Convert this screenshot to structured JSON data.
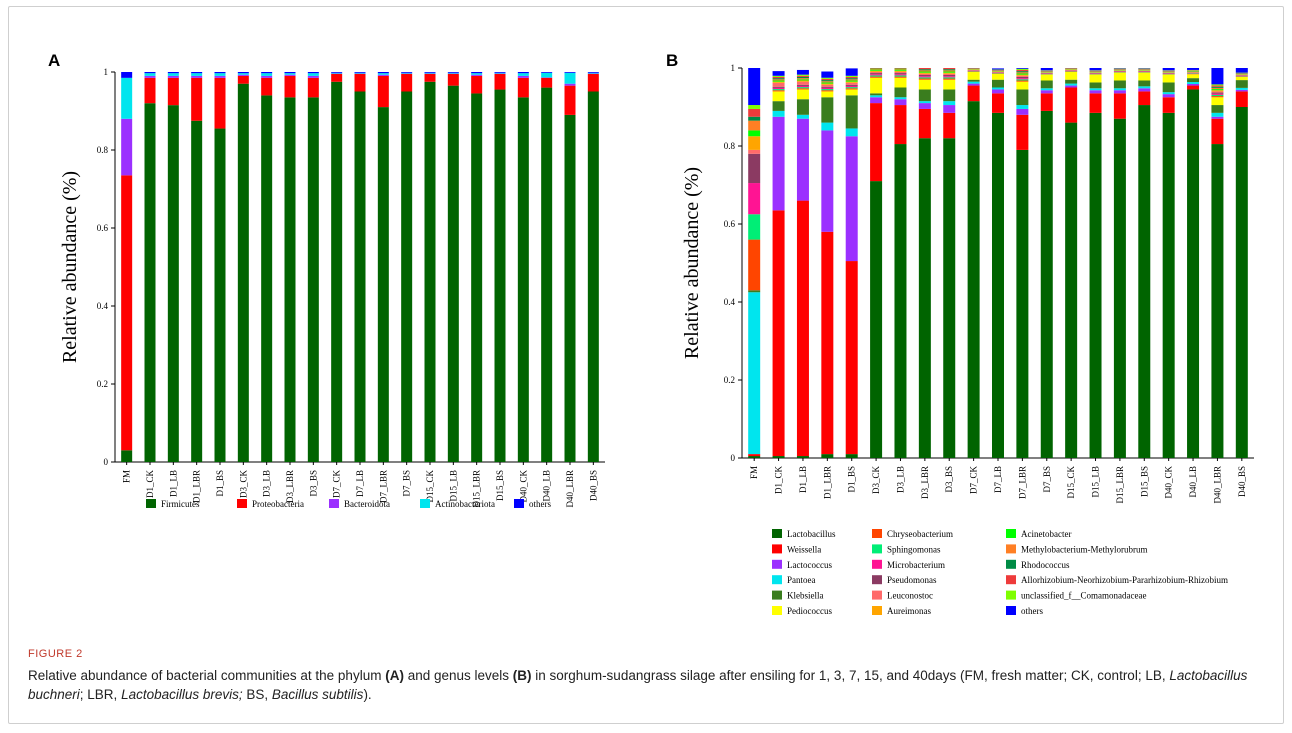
{
  "figure_label": "FIGURE 2",
  "caption": {
    "t1": "Relative abundance of bacterial communities at the phylum ",
    "a": "(A)",
    "t2": " and genus levels ",
    "b": "(B)",
    "t3": " in sorghum-sudangrass silage after ensiling for 1, 3, 7, 15, and 40days (FM, fresh matter; CK, control; LB, ",
    "lb": "Lactobacillus buchneri",
    "t4": "; LBR, ",
    "lbr": "Lactobacillus brevis;",
    "t5": " BS, ",
    "bs": "Bacillus subtilis",
    "t6": ")."
  },
  "chart_data": [
    {
      "panel": "A",
      "type": "bar",
      "stacked": true,
      "ylabel": "Relative abundance (%)",
      "ylim": [
        0,
        1
      ],
      "yticks": [
        "0",
        "0.2",
        "0.4",
        "0.6",
        "0.8",
        "1"
      ],
      "legend_position": "bottom",
      "categories": [
        "FM",
        "D1_CK",
        "D1_LB",
        "D1_LBR",
        "D1_BS",
        "D3_CK",
        "D3_LB",
        "D3_LBR",
        "D3_BS",
        "D7_CK",
        "D7_LB",
        "D7_LBR",
        "D7_BS",
        "D15_CK",
        "D15_LB",
        "D15_LBR",
        "D15_BS",
        "D40_CK",
        "D40_LB",
        "D40_LBR",
        "D40_BS"
      ],
      "series": [
        {
          "name": "Firmicutes",
          "color": "#006400",
          "values": [
            0.03,
            0.92,
            0.915,
            0.875,
            0.855,
            0.97,
            0.94,
            0.935,
            0.935,
            0.975,
            0.95,
            0.91,
            0.95,
            0.975,
            0.965,
            0.945,
            0.955,
            0.935,
            0.96,
            0.89,
            0.95
          ]
        },
        {
          "name": "Proteobacteria",
          "color": "#ff0000",
          "values": [
            0.705,
            0.065,
            0.07,
            0.11,
            0.13,
            0.02,
            0.045,
            0.055,
            0.05,
            0.02,
            0.045,
            0.08,
            0.045,
            0.02,
            0.03,
            0.045,
            0.04,
            0.05,
            0.025,
            0.075,
            0.045
          ]
        },
        {
          "name": "Bacteroidota",
          "color": "#9b30ff",
          "values": [
            0.145,
            0.005,
            0.005,
            0.005,
            0.005,
            0.003,
            0.005,
            0.003,
            0.005,
            0.001,
            0.001,
            0.003,
            0.001,
            0.001,
            0.001,
            0.003,
            0.001,
            0.005,
            0.001,
            0.005,
            0.001
          ]
        },
        {
          "name": "Actinobacteriota",
          "color": "#00e5ee",
          "values": [
            0.105,
            0.007,
            0.007,
            0.007,
            0.007,
            0.004,
            0.007,
            0.004,
            0.007,
            0.002,
            0.002,
            0.004,
            0.002,
            0.002,
            0.002,
            0.004,
            0.002,
            0.007,
            0.012,
            0.028,
            0.002
          ]
        },
        {
          "name": "others",
          "color": "#0000ff",
          "values": [
            0.015,
            0.003,
            0.003,
            0.003,
            0.003,
            0.003,
            0.003,
            0.003,
            0.003,
            0.002,
            0.002,
            0.003,
            0.002,
            0.002,
            0.002,
            0.003,
            0.002,
            0.003,
            0.002,
            0.002,
            0.002
          ]
        }
      ]
    },
    {
      "panel": "B",
      "type": "bar",
      "stacked": true,
      "ylabel": "Relative abundance (%)",
      "ylim": [
        0,
        1
      ],
      "yticks": [
        "0",
        "0.2",
        "0.4",
        "0.6",
        "0.8",
        "1"
      ],
      "legend_position": "bottom",
      "categories": [
        "FM",
        "D1_CK",
        "D1_LB",
        "D1_LBR",
        "D1_BS",
        "D3_CK",
        "D3_LB",
        "D3_LBR",
        "D3_BS",
        "D7_CK",
        "D7_LB",
        "D7_LBR",
        "D7_BS",
        "D15_CK",
        "D15_LB",
        "D15_LBR",
        "D15_BS",
        "D40_CK",
        "D40_LB",
        "D40_LBR",
        "D40_BS"
      ],
      "series": [
        {
          "name": "Lactobacillus",
          "color": "#006400",
          "values": [
            0.005,
            0.005,
            0.005,
            0.01,
            0.01,
            0.71,
            0.805,
            0.82,
            0.82,
            0.915,
            0.885,
            0.79,
            0.89,
            0.86,
            0.885,
            0.87,
            0.905,
            0.885,
            0.945,
            0.805,
            0.9
          ]
        },
        {
          "name": "Weissella",
          "color": "#ff0000",
          "values": [
            0.005,
            0.63,
            0.655,
            0.57,
            0.495,
            0.2,
            0.1,
            0.075,
            0.065,
            0.04,
            0.05,
            0.09,
            0.045,
            0.09,
            0.05,
            0.065,
            0.035,
            0.04,
            0.01,
            0.065,
            0.04
          ]
        },
        {
          "name": "Lactococcus",
          "color": "#9b30ff",
          "values": [
            0,
            0.24,
            0.21,
            0.26,
            0.32,
            0.015,
            0.015,
            0.015,
            0.02,
            0.005,
            0.01,
            0.015,
            0.008,
            0.005,
            0.008,
            0.008,
            0.008,
            0.008,
            0.004,
            0.005,
            0.004
          ]
        },
        {
          "name": "Pantoea",
          "color": "#00e5ee",
          "values": [
            0.415,
            0.015,
            0.01,
            0.02,
            0.02,
            0.005,
            0.005,
            0.005,
            0.01,
            0.005,
            0.005,
            0.01,
            0.005,
            0.005,
            0.005,
            0.005,
            0.005,
            0.005,
            0.005,
            0.01,
            0.005
          ]
        },
        {
          "name": "Klebsiella",
          "color": "#3a7d1e",
          "values": [
            0.005,
            0.025,
            0.04,
            0.065,
            0.085,
            0.005,
            0.025,
            0.03,
            0.03,
            0.005,
            0.02,
            0.04,
            0.02,
            0.01,
            0.015,
            0.02,
            0.015,
            0.025,
            0.01,
            0.02,
            0.02
          ]
        },
        {
          "name": "Pediococcus",
          "color": "#ffff00",
          "values": [
            0,
            0.025,
            0.025,
            0.015,
            0.015,
            0.04,
            0.025,
            0.025,
            0.025,
            0.02,
            0.015,
            0.02,
            0.015,
            0.02,
            0.02,
            0.02,
            0.02,
            0.02,
            0.01,
            0.02,
            0.008
          ]
        },
        {
          "name": "Chryseobacterium",
          "color": "#ff4500",
          "values": [
            0.13,
            0.003,
            0.003,
            0.003,
            0.003,
            0.003,
            0.003,
            0.003,
            0.003,
            0.001,
            0.001,
            0.003,
            0.001,
            0.001,
            0.001,
            0.001,
            0.001,
            0.001,
            0.001,
            0.003,
            0.001
          ]
        },
        {
          "name": "Sphingomonas",
          "color": "#00ee76",
          "values": [
            0.065,
            0.003,
            0.003,
            0.003,
            0.003,
            0.003,
            0.003,
            0.003,
            0.003,
            0.001,
            0.001,
            0.003,
            0.001,
            0.001,
            0.001,
            0.001,
            0.001,
            0.001,
            0.001,
            0.003,
            0.001
          ]
        },
        {
          "name": "Microbacterium",
          "color": "#ff1493",
          "values": [
            0.08,
            0.003,
            0.003,
            0.003,
            0.003,
            0.003,
            0.003,
            0.003,
            0.003,
            0.001,
            0.001,
            0.003,
            0.001,
            0.001,
            0.001,
            0.001,
            0.001,
            0.001,
            0.001,
            0.003,
            0.001
          ]
        },
        {
          "name": "Pseudomonas",
          "color": "#8b3a62",
          "values": [
            0.075,
            0.003,
            0.003,
            0.003,
            0.003,
            0.003,
            0.003,
            0.003,
            0.003,
            0.001,
            0.001,
            0.003,
            0.001,
            0.001,
            0.001,
            0.001,
            0.001,
            0.001,
            0.001,
            0.003,
            0.001
          ]
        },
        {
          "name": "Leuconostoc",
          "color": "#ff6a6a",
          "values": [
            0.01,
            0.01,
            0.008,
            0.005,
            0.005,
            0.003,
            0.003,
            0.003,
            0.003,
            0.001,
            0.001,
            0.003,
            0.001,
            0.001,
            0.001,
            0.001,
            0.001,
            0.001,
            0.001,
            0.003,
            0.001
          ]
        },
        {
          "name": "Aureimonas",
          "color": "#ffa500",
          "values": [
            0.035,
            0.003,
            0.003,
            0.003,
            0.003,
            0.003,
            0.003,
            0.003,
            0.003,
            0.001,
            0.001,
            0.003,
            0.001,
            0.001,
            0.001,
            0.001,
            0.001,
            0.001,
            0.001,
            0.003,
            0.001
          ]
        },
        {
          "name": "Acinetobacter",
          "color": "#00ff00",
          "values": [
            0.015,
            0.003,
            0.003,
            0.003,
            0.003,
            0.003,
            0.003,
            0.003,
            0.003,
            0.001,
            0.001,
            0.003,
            0.001,
            0.001,
            0.001,
            0.001,
            0.001,
            0.001,
            0.001,
            0.003,
            0.001
          ]
        },
        {
          "name": "Methylobacterium-Methylorubrum",
          "color": "#ff7f24",
          "values": [
            0.025,
            0.003,
            0.003,
            0.003,
            0.003,
            0.003,
            0.003,
            0.003,
            0.003,
            0.001,
            0.001,
            0.003,
            0.001,
            0.001,
            0.001,
            0.001,
            0.001,
            0.001,
            0.001,
            0.003,
            0.001
          ]
        },
        {
          "name": "Rhodococcus",
          "color": "#008b45",
          "values": [
            0.01,
            0.003,
            0.003,
            0.003,
            0.003,
            0.003,
            0.003,
            0.003,
            0.003,
            0.001,
            0.001,
            0.003,
            0.001,
            0.001,
            0.001,
            0.001,
            0.001,
            0.001,
            0.001,
            0.003,
            0.001
          ]
        },
        {
          "name": "Allorhizobium-Neorhizobium-Pararhizobium-Rhizobium",
          "color": "#ee3b3b",
          "values": [
            0.02,
            0.003,
            0.003,
            0.003,
            0.003,
            0.003,
            0.003,
            0.003,
            0.003,
            0.001,
            0.001,
            0.003,
            0.001,
            0.001,
            0.001,
            0.001,
            0.001,
            0.001,
            0.001,
            0.003,
            0.001
          ]
        },
        {
          "name": "unclassified_f__Comamonadaceae",
          "color": "#7fff00",
          "values": [
            0.01,
            0.003,
            0.003,
            0.003,
            0.003,
            0.003,
            0.003,
            0.003,
            0.003,
            0.001,
            0.001,
            0.003,
            0.001,
            0.001,
            0.001,
            0.001,
            0.001,
            0.001,
            0.001,
            0.003,
            0.001
          ]
        },
        {
          "name": "others",
          "color": "#0000ff",
          "values": [
            0.095,
            0.012,
            0.012,
            0.016,
            0.019,
            0.0,
            0.01,
            0.01,
            0.015,
            0.003,
            0.003,
            0.016,
            0.01,
            0.007,
            0.014,
            0.011,
            0.006,
            0.013,
            0.006,
            0.043,
            0.02
          ]
        }
      ]
    }
  ]
}
